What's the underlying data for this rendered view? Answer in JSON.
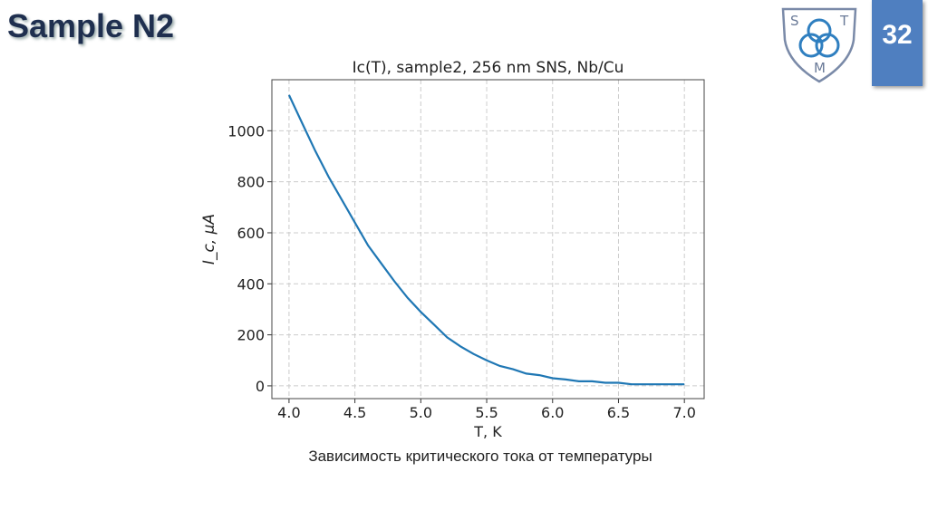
{
  "slide": {
    "title": "Sample N2",
    "page_number": "32",
    "logo_letters": [
      "S",
      "T",
      "M"
    ],
    "caption": "Зависимость критического тока от температуры",
    "accent_color": "#4f7fc0"
  },
  "chart_data": {
    "type": "line",
    "title": "Ic(T), sample2, 256 nm SNS, Nb/Cu",
    "xlabel": "T, K",
    "ylabel": "I_c, μA",
    "xlim": [
      3.87,
      7.15
    ],
    "ylim": [
      -50,
      1200
    ],
    "xticks": [
      4.0,
      4.5,
      5.0,
      5.5,
      6.0,
      6.5,
      7.0
    ],
    "xtick_labels": [
      "4.0",
      "4.5",
      "5.0",
      "5.5",
      "6.0",
      "6.5",
      "7.0"
    ],
    "yticks": [
      0,
      200,
      400,
      600,
      800,
      1000
    ],
    "ytick_labels": [
      "0",
      "200",
      "400",
      "600",
      "800",
      "1000"
    ],
    "grid": true,
    "line_color": "#1f77b4",
    "series": [
      {
        "x": [
          4.0,
          4.1,
          4.2,
          4.3,
          4.4,
          4.5,
          4.6,
          4.7,
          4.8,
          4.9,
          5.0,
          5.1,
          5.2,
          5.3,
          5.4,
          5.5,
          5.6,
          5.7,
          5.8,
          5.9,
          6.0,
          6.1,
          6.2,
          6.3,
          6.4,
          6.5,
          6.6,
          6.7,
          6.8,
          6.9,
          7.0
        ],
        "y": [
          1140,
          1030,
          920,
          820,
          730,
          640,
          550,
          480,
          410,
          345,
          290,
          240,
          190,
          155,
          125,
          100,
          78,
          65,
          48,
          42,
          30,
          25,
          18,
          18,
          12,
          12,
          6,
          6,
          6,
          6,
          6
        ]
      }
    ]
  }
}
